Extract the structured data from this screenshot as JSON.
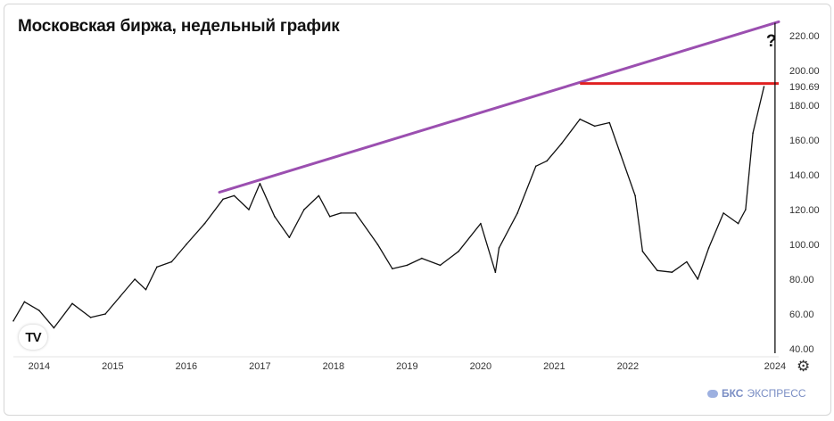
{
  "title": "Московская биржа, недельный график",
  "brand": {
    "name_bold": "БКС",
    "name_rest": "ЭКСПРЕСС"
  },
  "icons": {
    "logo": "tradingview-logo-icon",
    "settings": "gear-icon"
  },
  "colors": {
    "trendline": "#9b4fb0",
    "resistance": "#e02020",
    "price": "#111111",
    "marker_line": "#111111"
  },
  "chart_data": {
    "type": "line",
    "title": "Московская биржа, недельный график",
    "xlabel": "",
    "ylabel": "",
    "ylim": [
      40,
      230
    ],
    "xlim": [
      2013.65,
      2024.05
    ],
    "y_ticks": [
      "40.00",
      "60.00",
      "80.00",
      "100.00",
      "120.00",
      "140.00",
      "160.00",
      "180.00",
      "200.00",
      "220.00"
    ],
    "x_ticks": [
      "2014",
      "2015",
      "2016",
      "2017",
      "2018",
      "2019",
      "2020",
      "2021",
      "2022",
      "2024"
    ],
    "current_price_label": "190.69",
    "annotation": "?",
    "series": [
      {
        "x": [
          2013.65,
          2013.8,
          2014.0,
          2014.2,
          2014.45,
          2014.7,
          2014.9,
          2015.1,
          2015.3,
          2015.45,
          2015.6,
          2015.8,
          2016.0,
          2016.25,
          2016.5,
          2016.65,
          2016.85,
          2017.0,
          2017.2,
          2017.4,
          2017.6,
          2017.8,
          2017.95,
          2018.1,
          2018.3,
          2018.6,
          2018.8,
          2019.0,
          2019.2,
          2019.45,
          2019.7,
          2020.0,
          2020.2,
          2020.25,
          2020.5,
          2020.75,
          2020.9,
          2021.1,
          2021.35,
          2021.55,
          2021.75,
          2021.9,
          2022.1,
          2022.2,
          2022.4,
          2022.6,
          2022.8,
          2022.95,
          2023.1,
          2023.3,
          2023.5,
          2023.6,
          2023.7,
          2023.85
        ],
        "y": [
          56,
          67,
          62,
          52,
          66,
          58,
          60,
          70,
          80,
          74,
          87,
          90,
          100,
          112,
          126,
          128,
          120,
          135,
          116,
          104,
          120,
          128,
          116,
          118,
          118,
          100,
          86,
          88,
          92,
          88,
          96,
          112,
          84,
          98,
          118,
          145,
          148,
          158,
          172,
          168,
          170,
          152,
          128,
          96,
          85,
          84,
          90,
          80,
          98,
          118,
          112,
          120,
          164,
          190.69
        ]
      }
    ],
    "trendline": {
      "x": [
        2016.45,
        2024.05
      ],
      "y": [
        130,
        228
      ]
    },
    "resistance": {
      "x": [
        2021.35,
        2024.05
      ],
      "y": [
        192.5,
        192.5
      ]
    },
    "marker_x": 2024.0
  }
}
